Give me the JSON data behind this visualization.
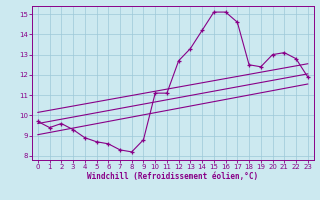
{
  "xlabel": "Windchill (Refroidissement éolien,°C)",
  "bg_color": "#cce9f0",
  "grid_color": "#9ec8d8",
  "line_color": "#880088",
  "xlim": [
    -0.5,
    23.5
  ],
  "ylim": [
    7.8,
    15.4
  ],
  "yticks": [
    8,
    9,
    10,
    11,
    12,
    13,
    14,
    15
  ],
  "xticks": [
    0,
    1,
    2,
    3,
    4,
    5,
    6,
    7,
    8,
    9,
    10,
    11,
    12,
    13,
    14,
    15,
    16,
    17,
    18,
    19,
    20,
    21,
    22,
    23
  ],
  "data_x": [
    0,
    1,
    2,
    3,
    4,
    5,
    6,
    7,
    8,
    9,
    10,
    11,
    12,
    13,
    14,
    15,
    16,
    17,
    18,
    19,
    20,
    21,
    22,
    23
  ],
  "data_y": [
    9.7,
    9.4,
    9.6,
    9.3,
    8.9,
    8.7,
    8.6,
    8.3,
    8.2,
    8.8,
    11.1,
    11.1,
    12.7,
    13.3,
    14.2,
    15.1,
    15.1,
    14.6,
    12.5,
    12.4,
    13.0,
    13.1,
    12.8,
    11.9
  ],
  "reg_line_x": [
    0,
    23
  ],
  "reg_line_y": [
    9.6,
    12.05
  ],
  "upper_line_x": [
    0,
    23
  ],
  "upper_line_y": [
    10.15,
    12.55
  ],
  "lower_line_x": [
    0,
    23
  ],
  "lower_line_y": [
    9.05,
    11.55
  ]
}
